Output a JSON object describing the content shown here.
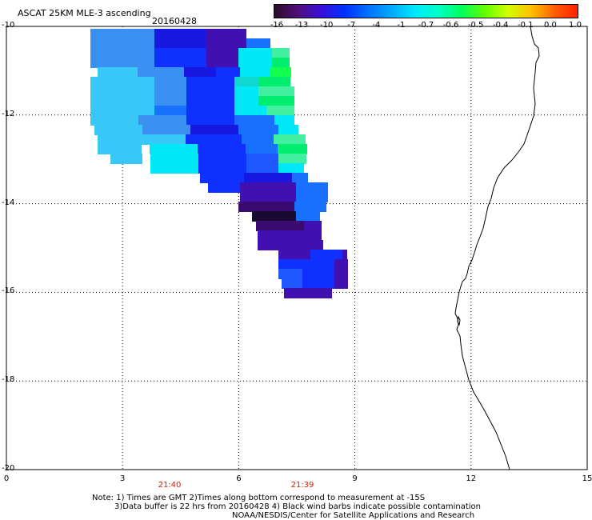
{
  "header": {
    "title": "ASCAT 25KM MLE-3 ascending",
    "date": "20160428"
  },
  "colorbar": {
    "ticks": [
      "-16",
      "-13",
      "-10",
      "-7",
      "-4",
      "-1",
      "-0.7",
      "-0.6",
      "-0.5",
      "-0.4",
      "-0.1",
      "0.0",
      "1.0"
    ],
    "colors": [
      "#2a0a28",
      "#50107a",
      "#3a10d8",
      "#0030ff",
      "#0070ff",
      "#00a8ff",
      "#00e8ff",
      "#00ffc8",
      "#00ff60",
      "#60ff00",
      "#d0ff00",
      "#ffc000",
      "#ff6000",
      "#ff2000"
    ]
  },
  "axes": {
    "y_ticks": [
      "-10",
      "-12",
      "-14",
      "-16",
      "-18",
      "-20"
    ],
    "x_ticks": [
      "0",
      "3",
      "6",
      "9",
      "12",
      "15"
    ],
    "lon_range": [
      0,
      15
    ],
    "lat_range": [
      -20,
      -10
    ]
  },
  "times": [
    "21:40",
    "21:39"
  ],
  "notes": {
    "line1": "Note: 1) Times are GMT 2)Times along bottom correspond to measurement at -15S",
    "line2": "3)Data buffer is 22 hrs from 20160428 4) Black wind barbs indicate possible contamination",
    "line3": "NOAA/NESDIS/Center for Satellite Applications and Research"
  }
}
